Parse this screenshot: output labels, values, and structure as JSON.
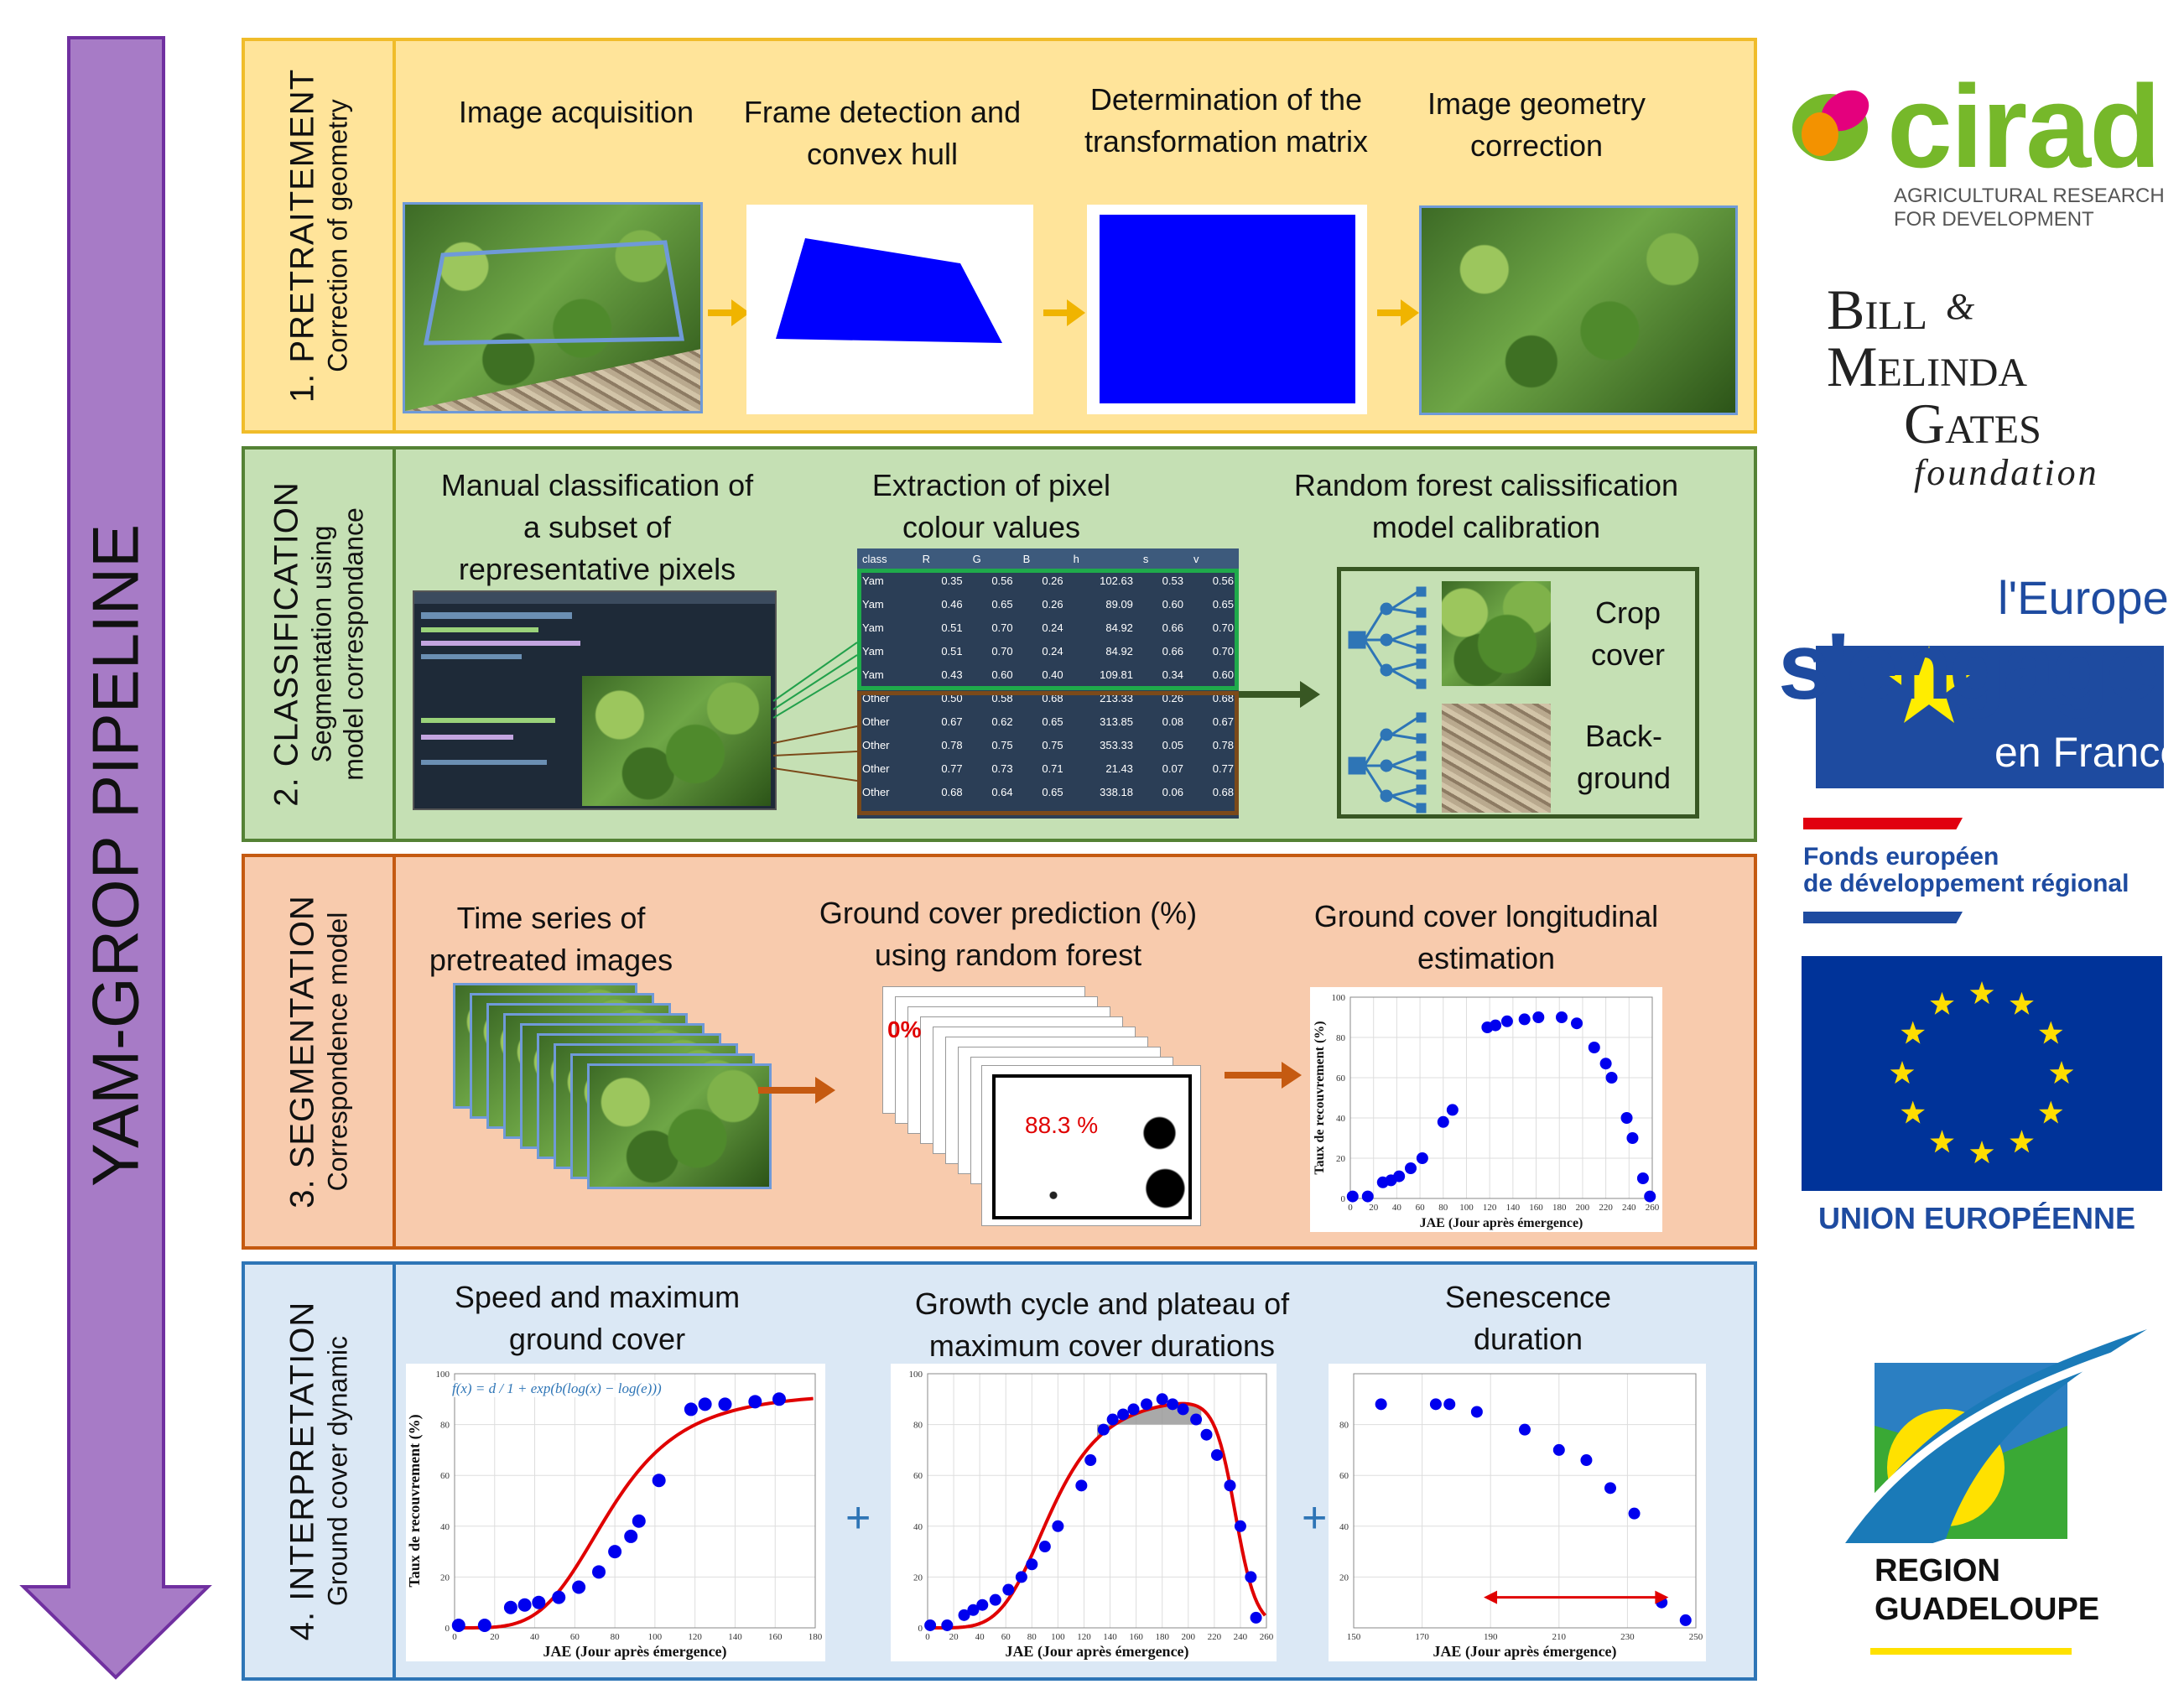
{
  "pipeline_title": "YAM-GROP PIPELINE",
  "colors": {
    "arrow": "#a77bc6",
    "section1_bg": "#ffe49a",
    "section1_border": "#f0bc2a",
    "section2_bg": "#c5e0b4",
    "section2_border": "#548235",
    "section3_bg": "#f8cbad",
    "section3_border": "#c55a11",
    "section4_bg": "#dbe8f5",
    "section4_border": "#2e75b6",
    "marker": "#0000ee",
    "fit_curve": "#e00000"
  },
  "sections": [
    {
      "title": "1. PRETRAITEMENT",
      "subtitle": "Correction of geometry",
      "steps": [
        "Image acquisition",
        "Frame detection and convex hull",
        "Determination of the transformation matrix",
        "Image geometry correction"
      ]
    },
    {
      "title": "2. CLASSIFICATION",
      "subtitle_line1": "Segmentation using",
      "subtitle_line2": "model correspondance",
      "steps": [
        "Manual classification of a subset of representative pixels",
        "Extraction of pixel colour values",
        "Random forest calissification model calibration"
      ],
      "classes": [
        "Crop cover",
        "Back- ground"
      ]
    },
    {
      "title": "3. SEGMENTATION",
      "subtitle": "Correspondence model",
      "steps": [
        "Time series of pretreated images",
        "Ground cover prediction (%) using random forest",
        "Ground cover longitudinal estimation"
      ],
      "prediction_labels": [
        "0%",
        "88.3 %"
      ]
    },
    {
      "title": "4. INTERPRETATION",
      "subtitle": "Ground cover dynamic",
      "steps": [
        "Speed and maximum ground cover",
        "Growth cycle and plateau of maximum cover durations",
        "Senescence duration"
      ],
      "plus": "+",
      "formula": "f(x) = d / 1 + exp(b(log(x) − log(e)))"
    }
  ],
  "pixel_table": {
    "headers": [
      "class",
      "R",
      "G",
      "B",
      "h",
      "s",
      "v"
    ],
    "rows": [
      [
        "Yam",
        "0.35",
        "0.56",
        "0.26",
        "102.63",
        "0.53",
        "0.56"
      ],
      [
        "Yam",
        "0.46",
        "0.65",
        "0.26",
        "89.09",
        "0.60",
        "0.65"
      ],
      [
        "Yam",
        "0.51",
        "0.70",
        "0.24",
        "84.92",
        "0.66",
        "0.70"
      ],
      [
        "Yam",
        "0.51",
        "0.70",
        "0.24",
        "84.92",
        "0.66",
        "0.70"
      ],
      [
        "Yam",
        "0.43",
        "0.60",
        "0.40",
        "109.81",
        "0.34",
        "0.60"
      ],
      [
        "Other",
        "0.50",
        "0.58",
        "0.68",
        "213.33",
        "0.26",
        "0.68"
      ],
      [
        "Other",
        "0.67",
        "0.62",
        "0.65",
        "313.85",
        "0.08",
        "0.67"
      ],
      [
        "Other",
        "0.78",
        "0.75",
        "0.75",
        "353.33",
        "0.05",
        "0.78"
      ],
      [
        "Other",
        "0.77",
        "0.73",
        "0.71",
        "21.43",
        "0.07",
        "0.77"
      ],
      [
        "Other",
        "0.68",
        "0.64",
        "0.65",
        "338.18",
        "0.06",
        "0.68"
      ]
    ]
  },
  "charts_text": {
    "ylabel": "Taux de recouvrement (%)",
    "xlabel": "JAE (Jour après émergence)"
  },
  "chart_data": [
    {
      "type": "scatter",
      "id": "longitudinal",
      "xlabel": "JAE (Jour après émergence)",
      "ylabel": "Taux de recouvrement (%)",
      "xlim": [
        0,
        260
      ],
      "ylim": [
        0,
        100
      ],
      "xticks": [
        0,
        20,
        40,
        60,
        80,
        100,
        120,
        140,
        160,
        180,
        200,
        220,
        240,
        260
      ],
      "yticks": [
        0,
        20,
        40,
        60,
        80,
        100
      ],
      "x": [
        2,
        15,
        28,
        35,
        42,
        52,
        62,
        80,
        88,
        118,
        125,
        135,
        150,
        162,
        182,
        195,
        210,
        220,
        225,
        238,
        243,
        252,
        258
      ],
      "y": [
        1,
        1,
        8,
        9,
        11,
        15,
        20,
        38,
        44,
        85,
        86,
        88,
        89,
        90,
        90,
        87,
        75,
        67,
        60,
        40,
        30,
        10,
        1
      ]
    },
    {
      "type": "scatter",
      "id": "speed_max",
      "xlabel": "JAE (Jour après émergence)",
      "ylabel": "Taux de recouvrement (%)",
      "xlim": [
        0,
        180
      ],
      "ylim": [
        0,
        100
      ],
      "xticks": [
        0,
        20,
        40,
        60,
        80,
        100,
        120,
        140,
        160,
        180
      ],
      "yticks": [
        0,
        20,
        40,
        60,
        80,
        100
      ],
      "x": [
        2,
        15,
        28,
        35,
        42,
        52,
        62,
        72,
        80,
        88,
        92,
        102,
        118,
        125,
        135,
        150,
        162
      ],
      "y": [
        1,
        1,
        8,
        9,
        10,
        12,
        16,
        22,
        30,
        36,
        42,
        58,
        86,
        88,
        88,
        89,
        90
      ],
      "fit": {
        "d": 93,
        "b": -4.2,
        "e": 78
      }
    },
    {
      "type": "scatter",
      "id": "growth_plateau",
      "xlabel": "JAE (Jour après émergence)",
      "ylabel": "Taux de recouvrement (%)",
      "xlim": [
        0,
        260
      ],
      "ylim": [
        0,
        100
      ],
      "xticks": [
        0,
        20,
        40,
        60,
        80,
        100,
        120,
        140,
        160,
        180,
        200,
        220,
        240,
        260
      ],
      "yticks": [
        0,
        20,
        40,
        60,
        80,
        100
      ],
      "x": [
        2,
        15,
        28,
        35,
        42,
        52,
        62,
        72,
        80,
        90,
        100,
        118,
        125,
        135,
        142,
        150,
        158,
        168,
        180,
        188,
        196,
        206,
        214,
        222,
        232,
        240,
        248,
        252
      ],
      "y": [
        1,
        1,
        5,
        7,
        9,
        11,
        15,
        20,
        25,
        32,
        40,
        56,
        66,
        78,
        82,
        84,
        86,
        88,
        90,
        88,
        86,
        82,
        76,
        68,
        56,
        40,
        20,
        4
      ],
      "plateau_range": [
        130,
        210
      ],
      "plateau_level": 80
    },
    {
      "type": "scatter",
      "id": "senescence",
      "xlabel": "JAE (Jour après émergence)",
      "ylim": [
        0,
        100
      ],
      "xlim": [
        150,
        250
      ],
      "xticks": [
        150,
        170,
        190,
        210,
        230,
        250
      ],
      "yticks": [
        20,
        40,
        60,
        80
      ],
      "x": [
        158,
        174,
        178,
        186,
        200,
        210,
        218,
        225,
        232,
        240,
        247
      ],
      "y": [
        88,
        88,
        88,
        85,
        78,
        70,
        66,
        55,
        45,
        10,
        3
      ],
      "duration_arrow": [
        188,
        242
      ]
    }
  ],
  "logos": {
    "cirad": "cirad",
    "cirad_sub1": "AGRICULTURAL RESEARCH",
    "cirad_sub2": "FOR DEVELOPMENT",
    "gates1": "Bill",
    "gates_amp": "&",
    "gates2": "Melinda",
    "gates3": "Gates",
    "gates4": "foundation",
    "europe1": "l'Europe",
    "europe2": "s'engage",
    "europe3": "en France",
    "feder1": "Fonds européen",
    "feder2": "de développement régional",
    "ue": "UNION EUROPÉENNE",
    "region1": "REGION",
    "region2": "GUADELOUPE"
  }
}
